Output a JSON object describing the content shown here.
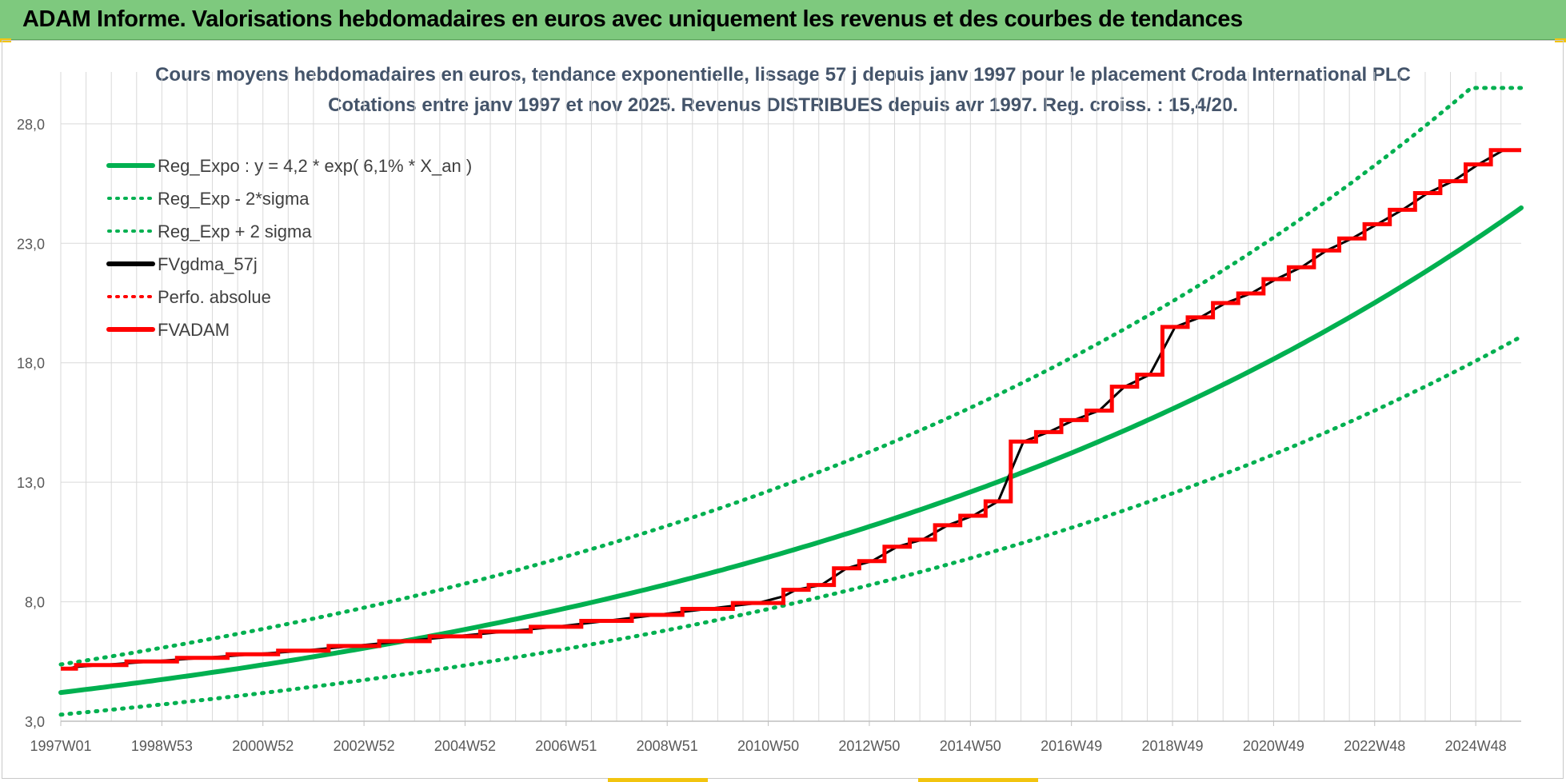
{
  "header": {
    "title": "ADAM Informe. Valorisations hebdomadaires en euros avec uniquement les revenus et des courbes de tendances"
  },
  "colors": {
    "banner": "#7ec97e",
    "reg_expo": "#00b050",
    "fvgdma": "#000000",
    "fvadam": "#ff0000",
    "grid": "#d9d9d9",
    "title_text": "#44546a"
  },
  "chart_data": {
    "type": "line",
    "title_line1": "Cours moyens hebdomadaires en euros, tendance exponentielle, lissage 57 j depuis janv 1997 pour le placement Croda International PLC",
    "title_line2": "Cotations entre janv 1997 et nov 2025. Revenus DISTRIBUES depuis avr 1997. Reg. croiss. : 15,4/20.",
    "xlabel": "",
    "ylabel": "",
    "x_range": [
      1997.0,
      2025.9
    ],
    "ylim": [
      3,
      29.5
    ],
    "y_ticks": [
      3,
      8,
      13,
      18,
      23,
      28
    ],
    "y_tick_labels": [
      "3,0",
      "8,0",
      "13,0",
      "18,0",
      "23,0",
      "28,0"
    ],
    "x_ticks": [
      1997.0,
      1999.0,
      2001.0,
      2003.0,
      2005.0,
      2007.0,
      2009.0,
      2011.0,
      2013.0,
      2015.0,
      2017.0,
      2019.0,
      2021.0,
      2023.0,
      2025.0
    ],
    "x_tick_labels": [
      "1997W01",
      "1998W53",
      "2000W52",
      "2002W52",
      "2004W52",
      "2006W51",
      "2008W51",
      "2010W50",
      "2012W50",
      "2014W50",
      "2016W49",
      "2018W49",
      "2020W49",
      "2022W48",
      "2024W48"
    ],
    "legend": [
      {
        "label": "Reg_Expo : y = 4,2 * exp( 6,1% *  X_an )",
        "color": "#00b050",
        "style": "solid"
      },
      {
        "label": "Reg_Exp - 2*sigma",
        "color": "#00b050",
        "style": "dotted"
      },
      {
        "label": "Reg_Exp + 2 sigma",
        "color": "#00b050",
        "style": "dotted"
      },
      {
        "label": "FVgdma_57j",
        "color": "#000000",
        "style": "solid"
      },
      {
        "label": "Perfo. absolue",
        "color": "#ff0000",
        "style": "dotted"
      },
      {
        "label": "FVADAM",
        "color": "#ff0000",
        "style": "solid"
      }
    ],
    "legend_position": "top-left",
    "series": [
      {
        "name": "Reg_Expo",
        "kind": "exp",
        "a": 4.2,
        "rate": 0.061,
        "scale": 1.0,
        "values_note": "y = 4,2 * exp(6,1% * X_an)"
      },
      {
        "name": "Reg_Exp - 2*sigma",
        "kind": "exp",
        "a": 4.2,
        "rate": 0.061,
        "scale": 0.78
      },
      {
        "name": "Reg_Exp + 2 sigma",
        "kind": "exp",
        "a": 4.2,
        "rate": 0.061,
        "scale": 1.28,
        "cap": 29.5
      },
      {
        "name": "FVADAM",
        "kind": "step",
        "x": [
          1997.0,
          1997.3,
          1998.3,
          1999.3,
          2000.3,
          2001.3,
          2002.3,
          2003.3,
          2004.3,
          2005.3,
          2006.3,
          2007.3,
          2008.3,
          2009.3,
          2010.3,
          2011.3,
          2011.8,
          2012.3,
          2012.8,
          2013.3,
          2013.8,
          2014.3,
          2014.8,
          2015.3,
          2015.8,
          2016.3,
          2016.8,
          2017.3,
          2017.8,
          2018.3,
          2018.8,
          2019.3,
          2019.8,
          2020.3,
          2020.8,
          2021.3,
          2021.8,
          2022.3,
          2022.8,
          2023.3,
          2023.8,
          2024.3,
          2024.8,
          2025.3,
          2025.8,
          2025.9
        ],
        "values": [
          5.2,
          5.35,
          5.5,
          5.65,
          5.8,
          5.95,
          6.15,
          6.35,
          6.55,
          6.75,
          6.95,
          7.2,
          7.45,
          7.7,
          7.95,
          8.5,
          8.7,
          9.4,
          9.7,
          10.3,
          10.6,
          11.2,
          11.6,
          12.2,
          14.7,
          15.1,
          15.6,
          16.0,
          17.0,
          17.5,
          19.5,
          19.9,
          20.5,
          20.9,
          21.5,
          22.0,
          22.7,
          23.2,
          23.8,
          24.4,
          25.1,
          25.6,
          26.3,
          26.9,
          26.9,
          26.9
        ]
      },
      {
        "name": "FVgdma_57j",
        "kind": "smoothed",
        "source": "FVADAM"
      }
    ]
  }
}
